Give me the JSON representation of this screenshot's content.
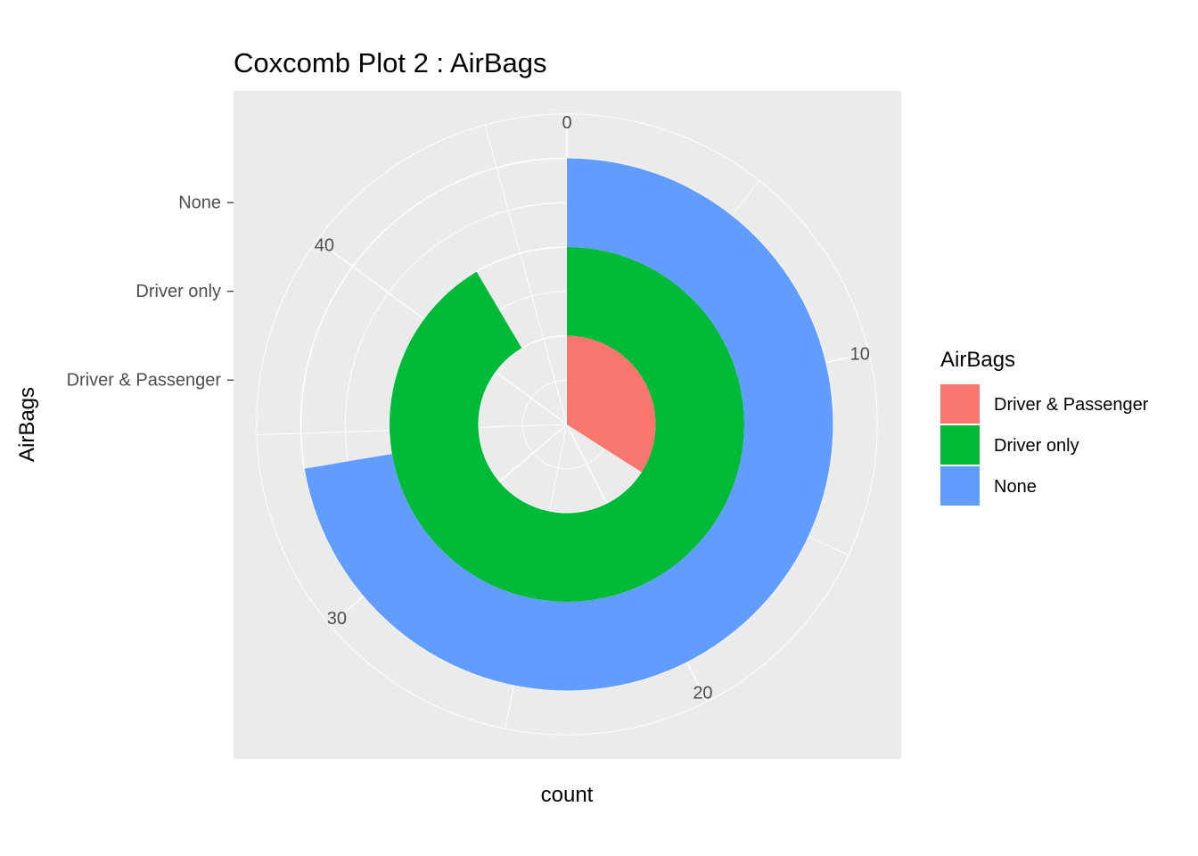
{
  "chart_data": {
    "type": "bar",
    "subtype": "coxcomb (stacked bar in polar coordinates, theta = count)",
    "title": "Coxcomb Plot 2 : AirBags",
    "xlabel": "count",
    "ylabel": "AirBags",
    "categories": [
      "Driver & Passenger",
      "Driver only",
      "None"
    ],
    "values": [
      16,
      43,
      34
    ],
    "ylim": [
      0,
      47
    ],
    "count_ticks": [
      "0",
      "10",
      "20",
      "30",
      "40"
    ],
    "count_tick_values": [
      0,
      10,
      20,
      30,
      40
    ],
    "grid": true,
    "legend": {
      "title": "AirBags",
      "position": "right",
      "entries": [
        "Driver & Passenger",
        "Driver only",
        "None"
      ]
    },
    "colors": {
      "Driver & Passenger": "#F8766D",
      "Driver only": "#00BA38",
      "None": "#619CFF",
      "panel": "#EBEBEB",
      "grid": "#FFFFFF"
    }
  }
}
